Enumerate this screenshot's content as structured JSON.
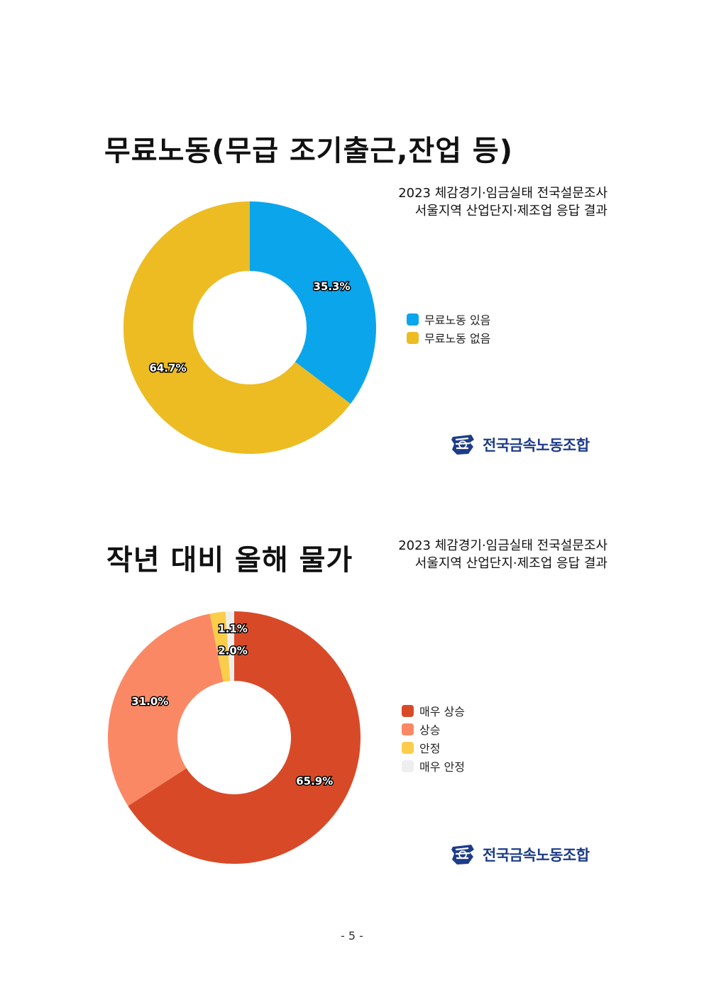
{
  "section1": {
    "title": "무료노동(무급 조기출근,잔업 등)",
    "subtitle_line1": "2023 체감경기·임금실태 전국설문조사",
    "subtitle_line2": "서울지역 산업단지·제조업 응답 결과"
  },
  "section2": {
    "title": "작년 대비 올해 물가",
    "subtitle_line1": "2023 체감경기·임금실태 전국설문조사",
    "subtitle_line2": "서울지역 산업단지·제조업 응답 결과"
  },
  "logo": {
    "text": "전국금속노동조합",
    "icon": "union-emblem-icon"
  },
  "page_number": "- 5 -",
  "chart_data": [
    {
      "type": "pie",
      "donut": true,
      "categories": [
        "무료노동 있음",
        "무료노동 없음"
      ],
      "values": [
        35.3,
        64.7
      ],
      "labels": [
        "35.3%",
        "64.7%"
      ],
      "colors": [
        "#0ba5ec",
        "#ecbc22"
      ],
      "legend_position": "right"
    },
    {
      "type": "pie",
      "donut": true,
      "categories": [
        "매우 상승",
        "상승",
        "안정",
        "매우 안정"
      ],
      "values": [
        65.9,
        31.0,
        2.0,
        1.1
      ],
      "labels": [
        "65.9%",
        "31.0%",
        "2.0%",
        "1.1%"
      ],
      "colors": [
        "#d84a27",
        "#fb8865",
        "#fccd4a",
        "#eeeeee"
      ],
      "legend_position": "right"
    }
  ]
}
